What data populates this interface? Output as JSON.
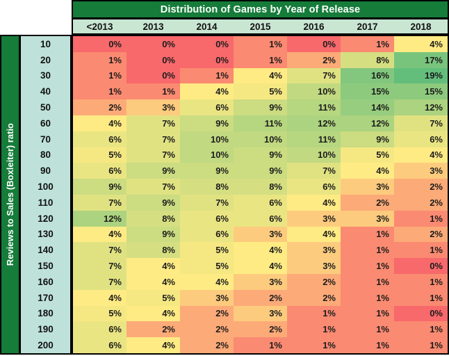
{
  "title": "Distribution of Games by Year of Release",
  "side_label": "Reviews to Sales (Boxleiter) ratio",
  "colors": {
    "band_green": "#157C39",
    "header_teal": "#C9E6D3",
    "row_label_teal": "#BEE2D9",
    "border": "#000000",
    "title_text": "#FFFFFF"
  },
  "chart_data": {
    "type": "heatmap",
    "title": "Distribution of Games by Year of Release",
    "ylabel": "Reviews to Sales (Boxleiter) ratio",
    "columns": [
      "<2013",
      "2013",
      "2014",
      "2015",
      "2016",
      "2017",
      "2018"
    ],
    "rows": [
      "10",
      "20",
      "30",
      "40",
      "50",
      "60",
      "70",
      "80",
      "90",
      "100",
      "110",
      "120",
      "130",
      "140",
      "150",
      "160",
      "170",
      "180",
      "190",
      "200"
    ],
    "value_suffix": "%",
    "values": [
      [
        0,
        0,
        0,
        1,
        0,
        1,
        4
      ],
      [
        1,
        0,
        0,
        1,
        2,
        8,
        17
      ],
      [
        1,
        0,
        1,
        4,
        7,
        16,
        19
      ],
      [
        1,
        1,
        4,
        5,
        10,
        15,
        15
      ],
      [
        2,
        3,
        6,
        9,
        11,
        14,
        12
      ],
      [
        4,
        7,
        9,
        11,
        12,
        12,
        7
      ],
      [
        6,
        7,
        10,
        10,
        11,
        9,
        6
      ],
      [
        5,
        7,
        10,
        9,
        10,
        5,
        4
      ],
      [
        6,
        9,
        9,
        9,
        7,
        4,
        3
      ],
      [
        9,
        7,
        8,
        8,
        6,
        3,
        2
      ],
      [
        7,
        9,
        7,
        6,
        4,
        2,
        2
      ],
      [
        12,
        8,
        6,
        6,
        3,
        3,
        1
      ],
      [
        4,
        9,
        6,
        3,
        4,
        1,
        2
      ],
      [
        7,
        8,
        5,
        4,
        3,
        1,
        1
      ],
      [
        7,
        4,
        5,
        4,
        3,
        1,
        0
      ],
      [
        7,
        4,
        4,
        3,
        2,
        1,
        1
      ],
      [
        4,
        5,
        3,
        2,
        2,
        1,
        1
      ],
      [
        5,
        4,
        2,
        3,
        1,
        1,
        0
      ],
      [
        6,
        2,
        2,
        2,
        1,
        1,
        1
      ],
      [
        6,
        4,
        2,
        1,
        1,
        1,
        1
      ]
    ],
    "color_scale": {
      "min_value": 0,
      "mid_value": 4,
      "max_value": 19,
      "min_color": "#F8696B",
      "mid_color": "#FFEB84",
      "max_color": "#63BE7B"
    },
    "legend_position": "none",
    "grid": false
  }
}
